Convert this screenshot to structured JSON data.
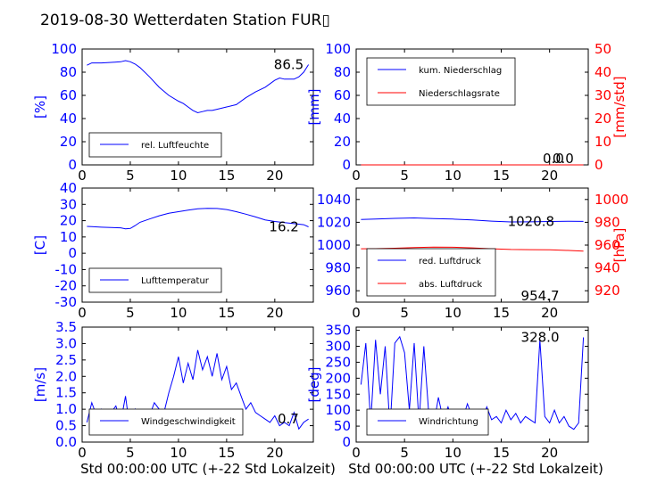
{
  "figure": {
    "title": "2019-08-30 Wetterdaten Station FUR▯",
    "xlabel": "Std 00:00:00 UTC (+-22 Std Lokalzeit)"
  },
  "colors": {
    "primary_axis": "#0000ff",
    "secondary_axis": "#ff0000",
    "series_blue": "#0000ff",
    "series_red": "#ff0000"
  },
  "chart_data": [
    {
      "type": "line",
      "panel": "humidity",
      "xlim": [
        0,
        24
      ],
      "xticks": [
        0,
        5,
        10,
        15,
        20
      ],
      "ylim": [
        0,
        100
      ],
      "yticks": [
        0,
        20,
        40,
        60,
        80,
        100
      ],
      "ylabel": "[%]",
      "legend_position": "lower-left",
      "series": [
        {
          "name": "rel. Luftfeuchte",
          "color": "#0000ff",
          "x": [
            0.5,
            1,
            2,
            3,
            4,
            4.5,
            5,
            5.5,
            6,
            7,
            8,
            9,
            10,
            10.5,
            11,
            11.5,
            12,
            12.5,
            13,
            13.5,
            14,
            15,
            16,
            17,
            18,
            19,
            20,
            20.5,
            21,
            22,
            22.5,
            23,
            23.5
          ],
          "y": [
            86,
            88,
            88,
            88.5,
            89,
            90,
            89,
            87,
            84,
            76,
            67,
            60,
            55,
            53,
            50,
            47,
            45,
            46,
            47,
            47,
            48,
            50,
            52,
            58,
            63,
            67,
            73,
            75,
            74,
            74,
            76,
            80,
            86.5
          ]
        }
      ],
      "annotations": [
        {
          "text": "86.5",
          "x": 23,
          "y": 86.5
        }
      ]
    },
    {
      "type": "line",
      "panel": "precipitation",
      "xlim": [
        0,
        24
      ],
      "xticks": [
        0,
        5,
        10,
        15,
        20
      ],
      "ylim": [
        0,
        100
      ],
      "yticks": [
        0,
        20,
        40,
        60,
        80,
        100
      ],
      "ylabel": "[mm]",
      "y2lim": [
        0,
        50
      ],
      "y2ticks": [
        0,
        10,
        20,
        30,
        40,
        50
      ],
      "y2label": "[mm/std]",
      "legend_position": "upper-left",
      "series": [
        {
          "name": "kum. Niederschlag",
          "color": "#0000ff",
          "axis": "left",
          "x": [
            0.5,
            23.5
          ],
          "y": [
            0,
            0
          ]
        },
        {
          "name": "Niederschlagsrate",
          "color": "#ff0000",
          "axis": "right",
          "x": [
            0.5,
            23.5
          ],
          "y": [
            0,
            0
          ]
        }
      ],
      "annotations": [
        {
          "text": "0.0",
          "x": 21.5,
          "y": 0
        },
        {
          "text": "0.0",
          "x": 22.5,
          "y": 0
        }
      ]
    },
    {
      "type": "line",
      "panel": "temperature",
      "xlim": [
        0,
        24
      ],
      "xticks": [
        0,
        5,
        10,
        15,
        20
      ],
      "ylim": [
        -30,
        40
      ],
      "yticks": [
        -30,
        -20,
        -10,
        0,
        10,
        20,
        30,
        40
      ],
      "ylabel": "[C]",
      "legend_position": "lower-left",
      "series": [
        {
          "name": "Lufttemperatur",
          "color": "#0000ff",
          "x": [
            0.5,
            1,
            2,
            3,
            4,
            4.5,
            5,
            5.5,
            6,
            7,
            8,
            9,
            10,
            11,
            12,
            13,
            14,
            15,
            16,
            17,
            18,
            19,
            20,
            21,
            22,
            23,
            23.5
          ],
          "y": [
            16.5,
            16.3,
            16,
            15.8,
            15.6,
            15,
            15.2,
            17,
            19,
            21,
            23,
            24.5,
            25.5,
            26.5,
            27.3,
            27.6,
            27.5,
            26.8,
            25.5,
            24,
            22.3,
            20.5,
            19.5,
            18.8,
            18.2,
            17.5,
            16.2
          ]
        }
      ],
      "annotations": [
        {
          "text": "16.2",
          "x": 22.5,
          "y": 16.2
        }
      ]
    },
    {
      "type": "line",
      "panel": "pressure",
      "xlim": [
        0,
        24
      ],
      "xticks": [
        0,
        5,
        10,
        15,
        20
      ],
      "ylim": [
        950,
        1050
      ],
      "yticks": [
        960,
        980,
        1000,
        1020,
        1040
      ],
      "y2lim": [
        910,
        1010
      ],
      "y2ticks": [
        920,
        940,
        960,
        980,
        1000
      ],
      "y2label": "[hPa]",
      "legend_position": "lower-left",
      "series": [
        {
          "name": "red. Luftdruck",
          "color": "#0000ff",
          "axis": "left",
          "x": [
            0.5,
            2,
            4,
            6,
            8,
            10,
            12,
            14,
            16,
            18,
            20,
            22,
            23.5
          ],
          "y": [
            1022.5,
            1022.8,
            1023.4,
            1023.8,
            1023.3,
            1022.8,
            1022,
            1021,
            1020.3,
            1020.4,
            1020.7,
            1020.9,
            1020.8
          ]
        },
        {
          "name": "abs. Luftdruck",
          "color": "#ff0000",
          "axis": "right",
          "x": [
            0.5,
            2,
            4,
            6,
            8,
            10,
            12,
            14,
            16,
            18,
            20,
            22,
            23.5
          ],
          "y": [
            956.8,
            956.9,
            957.3,
            957.8,
            958.2,
            958.1,
            957.6,
            956.8,
            956.2,
            956.0,
            955.9,
            955.3,
            954.7
          ]
        }
      ],
      "annotations": [
        {
          "text": "1020.8",
          "x": 20.5,
          "y": 1020.8
        },
        {
          "text": "954.7",
          "x": 21,
          "y": 954.7
        }
      ]
    },
    {
      "type": "line",
      "panel": "wind_speed",
      "xlim": [
        0,
        24
      ],
      "xticks": [
        0,
        5,
        10,
        15,
        20
      ],
      "ylim": [
        0,
        3.5
      ],
      "yticks": [
        0.0,
        0.5,
        1.0,
        1.5,
        2.0,
        2.5,
        3.0,
        3.5
      ],
      "ylabel": "[m/s]",
      "legend_position": "lower-left",
      "series": [
        {
          "name": "Windgeschwindigkeit",
          "color": "#0000ff",
          "x": [
            0.5,
            1,
            1.5,
            2,
            2.5,
            3,
            3.5,
            4,
            4.5,
            5,
            5.5,
            6,
            6.5,
            7,
            7.5,
            8,
            8.5,
            9,
            9.5,
            10,
            10.5,
            11,
            11.5,
            12,
            12.5,
            13,
            13.5,
            14,
            14.5,
            15,
            15.5,
            16,
            16.5,
            17,
            17.5,
            18,
            18.5,
            19,
            19.5,
            20,
            20.5,
            21,
            21.5,
            22,
            22.5,
            23,
            23.5
          ],
          "y": [
            0.6,
            1.2,
            0.8,
            1.0,
            0.7,
            0.9,
            1.1,
            0.6,
            1.4,
            0.3,
            1.0,
            0.7,
            0.9,
            0.8,
            1.2,
            1.0,
            0.9,
            1.5,
            2.0,
            2.6,
            1.8,
            2.4,
            1.9,
            2.8,
            2.2,
            2.6,
            2.0,
            2.7,
            1.9,
            2.3,
            1.6,
            1.8,
            1.4,
            1.0,
            1.2,
            0.9,
            0.8,
            0.7,
            0.6,
            0.8,
            0.5,
            0.6,
            0.5,
            0.9,
            0.4,
            0.6,
            0.7
          ]
        }
      ],
      "annotations": [
        {
          "text": "0.7",
          "x": 22.5,
          "y": 0.7
        }
      ]
    },
    {
      "type": "line",
      "panel": "wind_direction",
      "xlim": [
        0,
        24
      ],
      "xticks": [
        0,
        5,
        10,
        15,
        20
      ],
      "ylim": [
        0,
        360
      ],
      "yticks": [
        0,
        50,
        100,
        150,
        200,
        250,
        300,
        350
      ],
      "ylabel": "[deg]",
      "legend_position": "lower-left",
      "series": [
        {
          "name": "Windrichtung",
          "color": "#0000ff",
          "x": [
            0.5,
            1,
            1.5,
            2,
            2.5,
            3,
            3.5,
            4,
            4.5,
            5,
            5.5,
            6,
            6.5,
            7,
            7.5,
            8,
            8.5,
            9,
            9.5,
            10,
            10.5,
            11,
            11.5,
            12,
            12.5,
            13,
            13.5,
            14,
            14.5,
            15,
            15.5,
            16,
            16.5,
            17,
            17.5,
            18,
            18.5,
            19,
            19.5,
            20,
            20.5,
            21,
            21.5,
            22,
            22.5,
            23,
            23.5
          ],
          "y": [
            180,
            310,
            60,
            320,
            150,
            300,
            40,
            310,
            330,
            280,
            100,
            310,
            60,
            300,
            90,
            50,
            140,
            70,
            110,
            60,
            100,
            70,
            120,
            80,
            90,
            60,
            110,
            70,
            80,
            60,
            100,
            70,
            90,
            60,
            80,
            70,
            60,
            320,
            80,
            60,
            100,
            60,
            80,
            50,
            40,
            60,
            328
          ]
        }
      ],
      "annotations": [
        {
          "text": "328.0",
          "x": 21,
          "y": 328
        }
      ]
    }
  ]
}
